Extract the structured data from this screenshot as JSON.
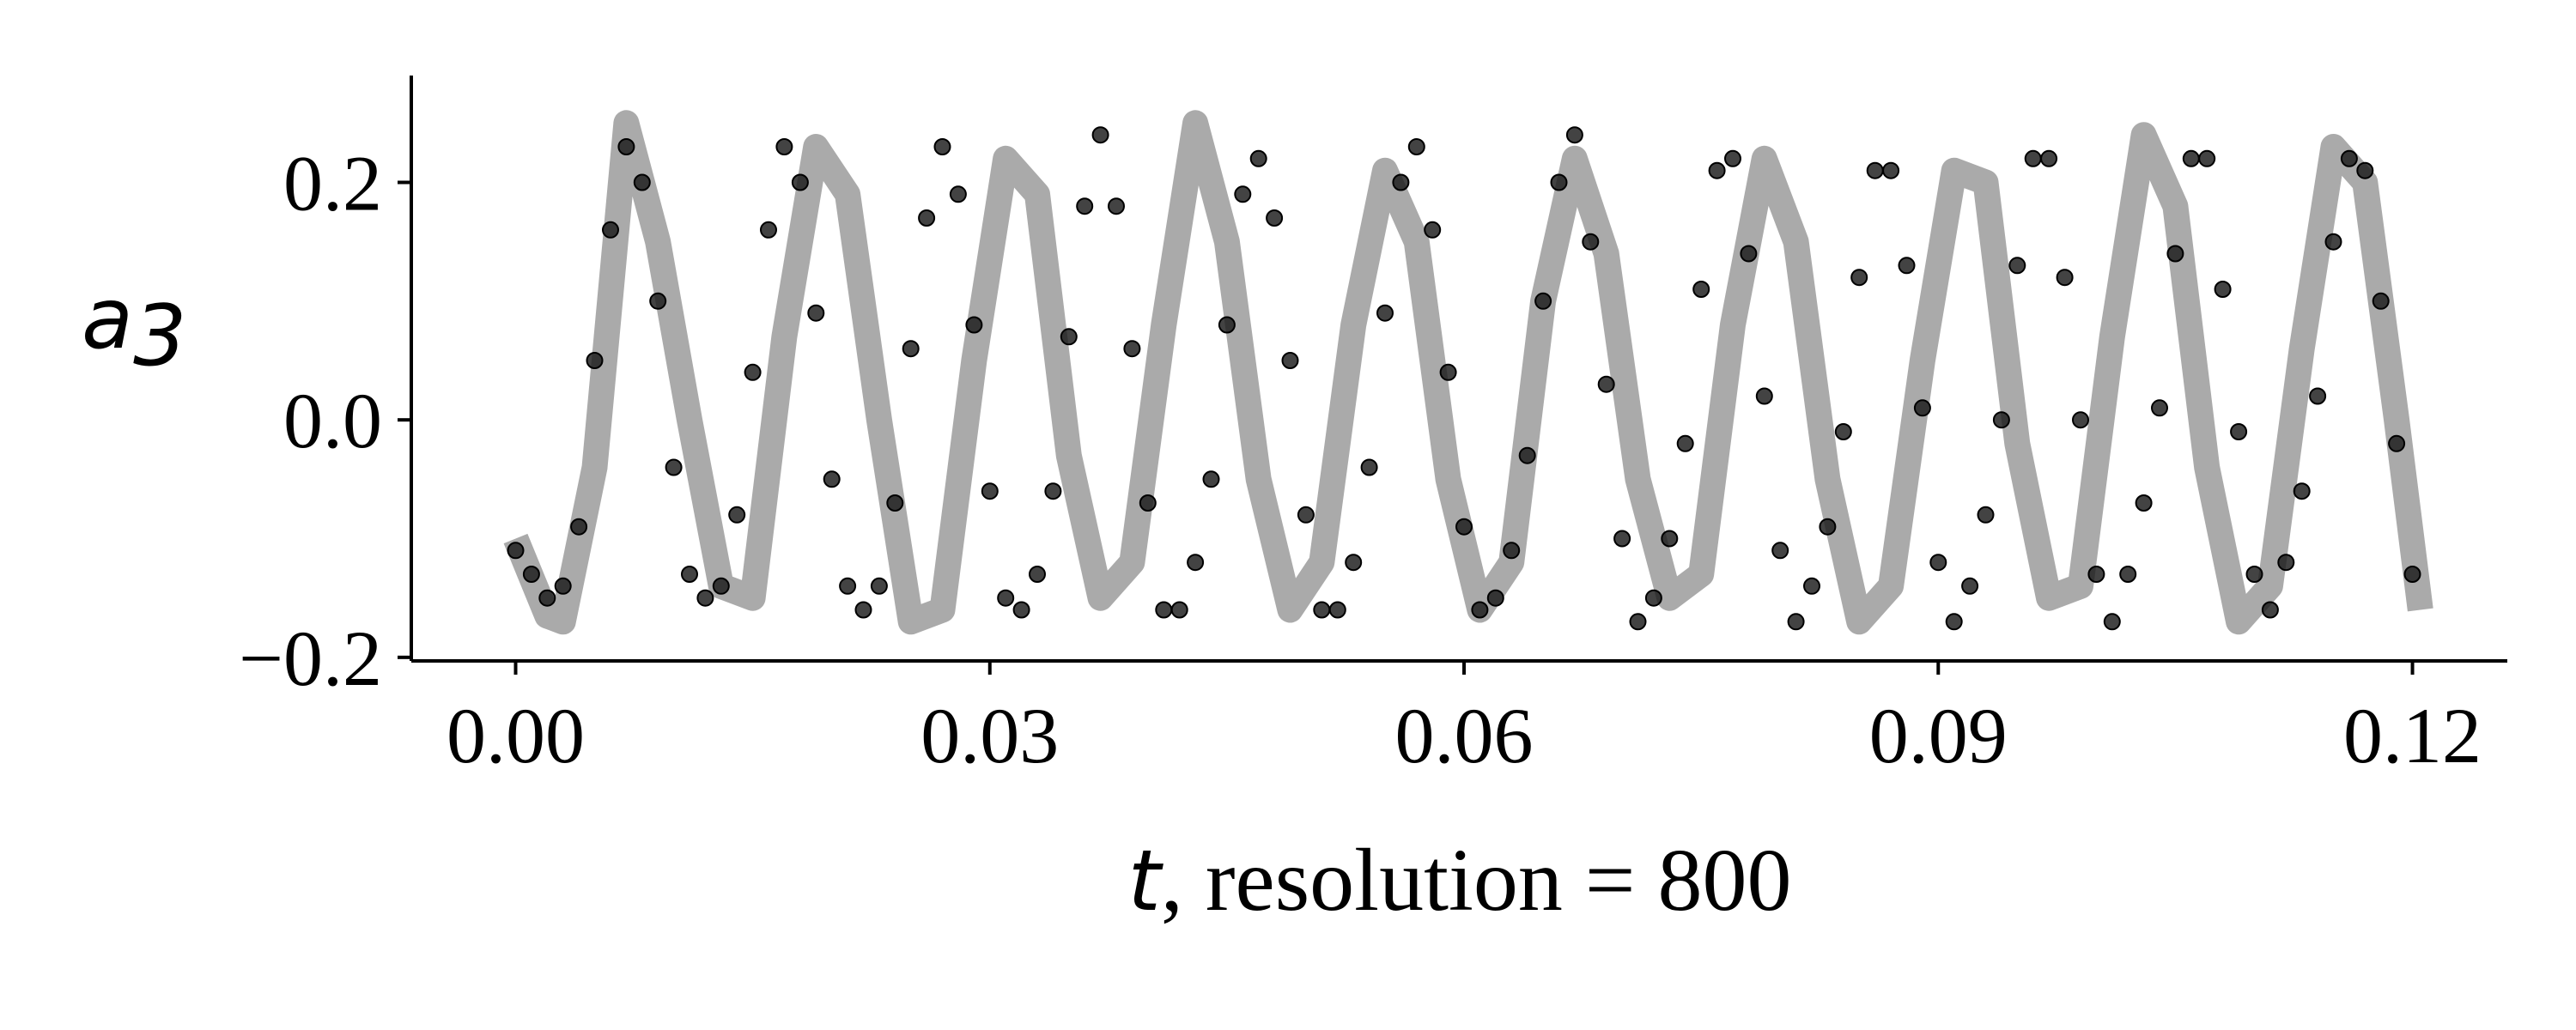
{
  "chart_data": {
    "type": "line",
    "title": "",
    "xlabel": {
      "var": "t",
      "rest": ", resolution = 800"
    },
    "ylabel": {
      "var": "a",
      "sub": "3"
    },
    "xlim": [
      -0.0066,
      0.126
    ],
    "ylim": [
      -0.203,
      0.29
    ],
    "xticks": [
      0.0,
      0.03,
      0.06,
      0.09,
      0.12
    ],
    "xtick_labels": [
      "0.00",
      "0.03",
      "0.06",
      "0.09",
      "0.12"
    ],
    "yticks": [
      -0.2,
      0.0,
      0.2
    ],
    "ytick_labels": [
      "−0.2",
      "0.0",
      "0.2"
    ],
    "grid": false,
    "colors": {
      "reference": "#aaaaaa",
      "markers": "#1a1a1a"
    },
    "series": [
      {
        "role": "reference-line",
        "x": [
          0.0,
          0.002,
          0.003,
          0.005,
          0.007,
          0.009,
          0.011,
          0.013,
          0.015,
          0.017,
          0.019,
          0.021,
          0.023,
          0.025,
          0.027,
          0.029,
          0.031,
          0.033,
          0.035,
          0.037,
          0.039,
          0.041,
          0.043,
          0.045,
          0.047,
          0.049,
          0.051,
          0.053,
          0.055,
          0.057,
          0.059,
          0.061,
          0.063,
          0.065,
          0.067,
          0.069,
          0.071,
          0.073,
          0.075,
          0.077,
          0.079,
          0.081,
          0.083,
          0.085,
          0.087,
          0.089,
          0.091,
          0.093,
          0.095,
          0.097,
          0.099,
          0.101,
          0.103,
          0.105,
          0.107,
          0.109,
          0.111,
          0.113,
          0.115,
          0.117,
          0.119,
          0.1205
        ],
        "y": [
          -0.1,
          -0.165,
          -0.17,
          -0.04,
          0.25,
          0.15,
          0.0,
          -0.14,
          -0.15,
          0.07,
          0.23,
          0.19,
          0.0,
          -0.17,
          -0.16,
          0.05,
          0.22,
          0.19,
          -0.03,
          -0.15,
          -0.12,
          0.08,
          0.25,
          0.15,
          -0.05,
          -0.16,
          -0.12,
          0.08,
          0.21,
          0.15,
          -0.05,
          -0.16,
          -0.12,
          0.1,
          0.22,
          0.14,
          -0.05,
          -0.15,
          -0.13,
          0.08,
          0.22,
          0.15,
          -0.05,
          -0.17,
          -0.14,
          0.05,
          0.21,
          0.2,
          -0.02,
          -0.15,
          -0.14,
          0.07,
          0.24,
          0.18,
          -0.04,
          -0.17,
          -0.14,
          0.06,
          0.23,
          0.2,
          0.0,
          -0.16
        ]
      },
      {
        "role": "markers",
        "x": [
          0.0,
          0.001,
          0.002,
          0.003,
          0.004,
          0.005,
          0.006,
          0.007,
          0.008,
          0.009,
          0.01,
          0.011,
          0.012,
          0.013,
          0.014,
          0.015,
          0.016,
          0.017,
          0.018,
          0.019,
          0.02,
          0.021,
          0.022,
          0.023,
          0.024,
          0.025,
          0.026,
          0.027,
          0.028,
          0.029,
          0.03,
          0.031,
          0.032,
          0.033,
          0.034,
          0.035,
          0.036,
          0.037,
          0.038,
          0.039,
          0.04,
          0.041,
          0.042,
          0.043,
          0.044,
          0.045,
          0.046,
          0.047,
          0.048,
          0.049,
          0.05,
          0.051,
          0.052,
          0.053,
          0.054,
          0.055,
          0.056,
          0.057,
          0.058,
          0.059,
          0.06,
          0.061,
          0.062,
          0.063,
          0.064,
          0.065,
          0.066,
          0.067,
          0.068,
          0.069,
          0.07,
          0.071,
          0.072,
          0.073,
          0.074,
          0.075,
          0.076,
          0.077,
          0.078,
          0.079,
          0.08,
          0.081,
          0.082,
          0.083,
          0.084,
          0.085,
          0.086,
          0.087,
          0.088,
          0.089,
          0.09,
          0.091,
          0.092,
          0.093,
          0.094,
          0.095,
          0.096,
          0.097,
          0.098,
          0.099,
          0.1,
          0.101,
          0.102,
          0.103,
          0.104,
          0.105,
          0.106,
          0.107,
          0.108,
          0.109,
          0.11,
          0.111,
          0.112,
          0.113,
          0.114,
          0.115,
          0.116,
          0.117,
          0.118,
          0.119,
          0.12
        ],
        "y": [
          -0.11,
          -0.13,
          -0.15,
          -0.14,
          -0.09,
          0.05,
          0.16,
          0.23,
          0.2,
          0.1,
          -0.04,
          -0.13,
          -0.15,
          -0.14,
          -0.08,
          0.04,
          0.16,
          0.23,
          0.2,
          0.09,
          -0.05,
          -0.14,
          -0.16,
          -0.14,
          -0.07,
          0.06,
          0.17,
          0.23,
          0.19,
          0.08,
          -0.06,
          -0.15,
          -0.16,
          -0.13,
          -0.06,
          0.07,
          0.18,
          0.24,
          0.18,
          0.06,
          -0.07,
          -0.16,
          -0.16,
          -0.12,
          -0.05,
          0.08,
          0.19,
          0.22,
          0.17,
          0.05,
          -0.08,
          -0.16,
          -0.16,
          -0.12,
          -0.04,
          0.09,
          0.2,
          0.23,
          0.16,
          0.04,
          -0.09,
          -0.16,
          -0.15,
          -0.11,
          -0.03,
          0.1,
          0.2,
          0.24,
          0.15,
          0.03,
          -0.1,
          -0.17,
          -0.15,
          -0.1,
          -0.02,
          0.11,
          0.21,
          0.22,
          0.14,
          0.02,
          -0.11,
          -0.17,
          -0.14,
          -0.09,
          -0.01,
          0.12,
          0.21,
          0.21,
          0.13,
          0.01,
          -0.12,
          -0.17,
          -0.14,
          -0.08,
          0.0,
          0.13,
          0.22,
          0.22,
          0.12,
          0.0,
          -0.13,
          -0.17,
          -0.13,
          -0.07,
          0.01,
          0.14,
          0.22,
          0.22,
          0.11,
          -0.01,
          -0.13,
          -0.16,
          -0.12,
          -0.06,
          0.02,
          0.15,
          0.22,
          0.21,
          0.1,
          -0.02,
          -0.13
        ]
      }
    ]
  }
}
